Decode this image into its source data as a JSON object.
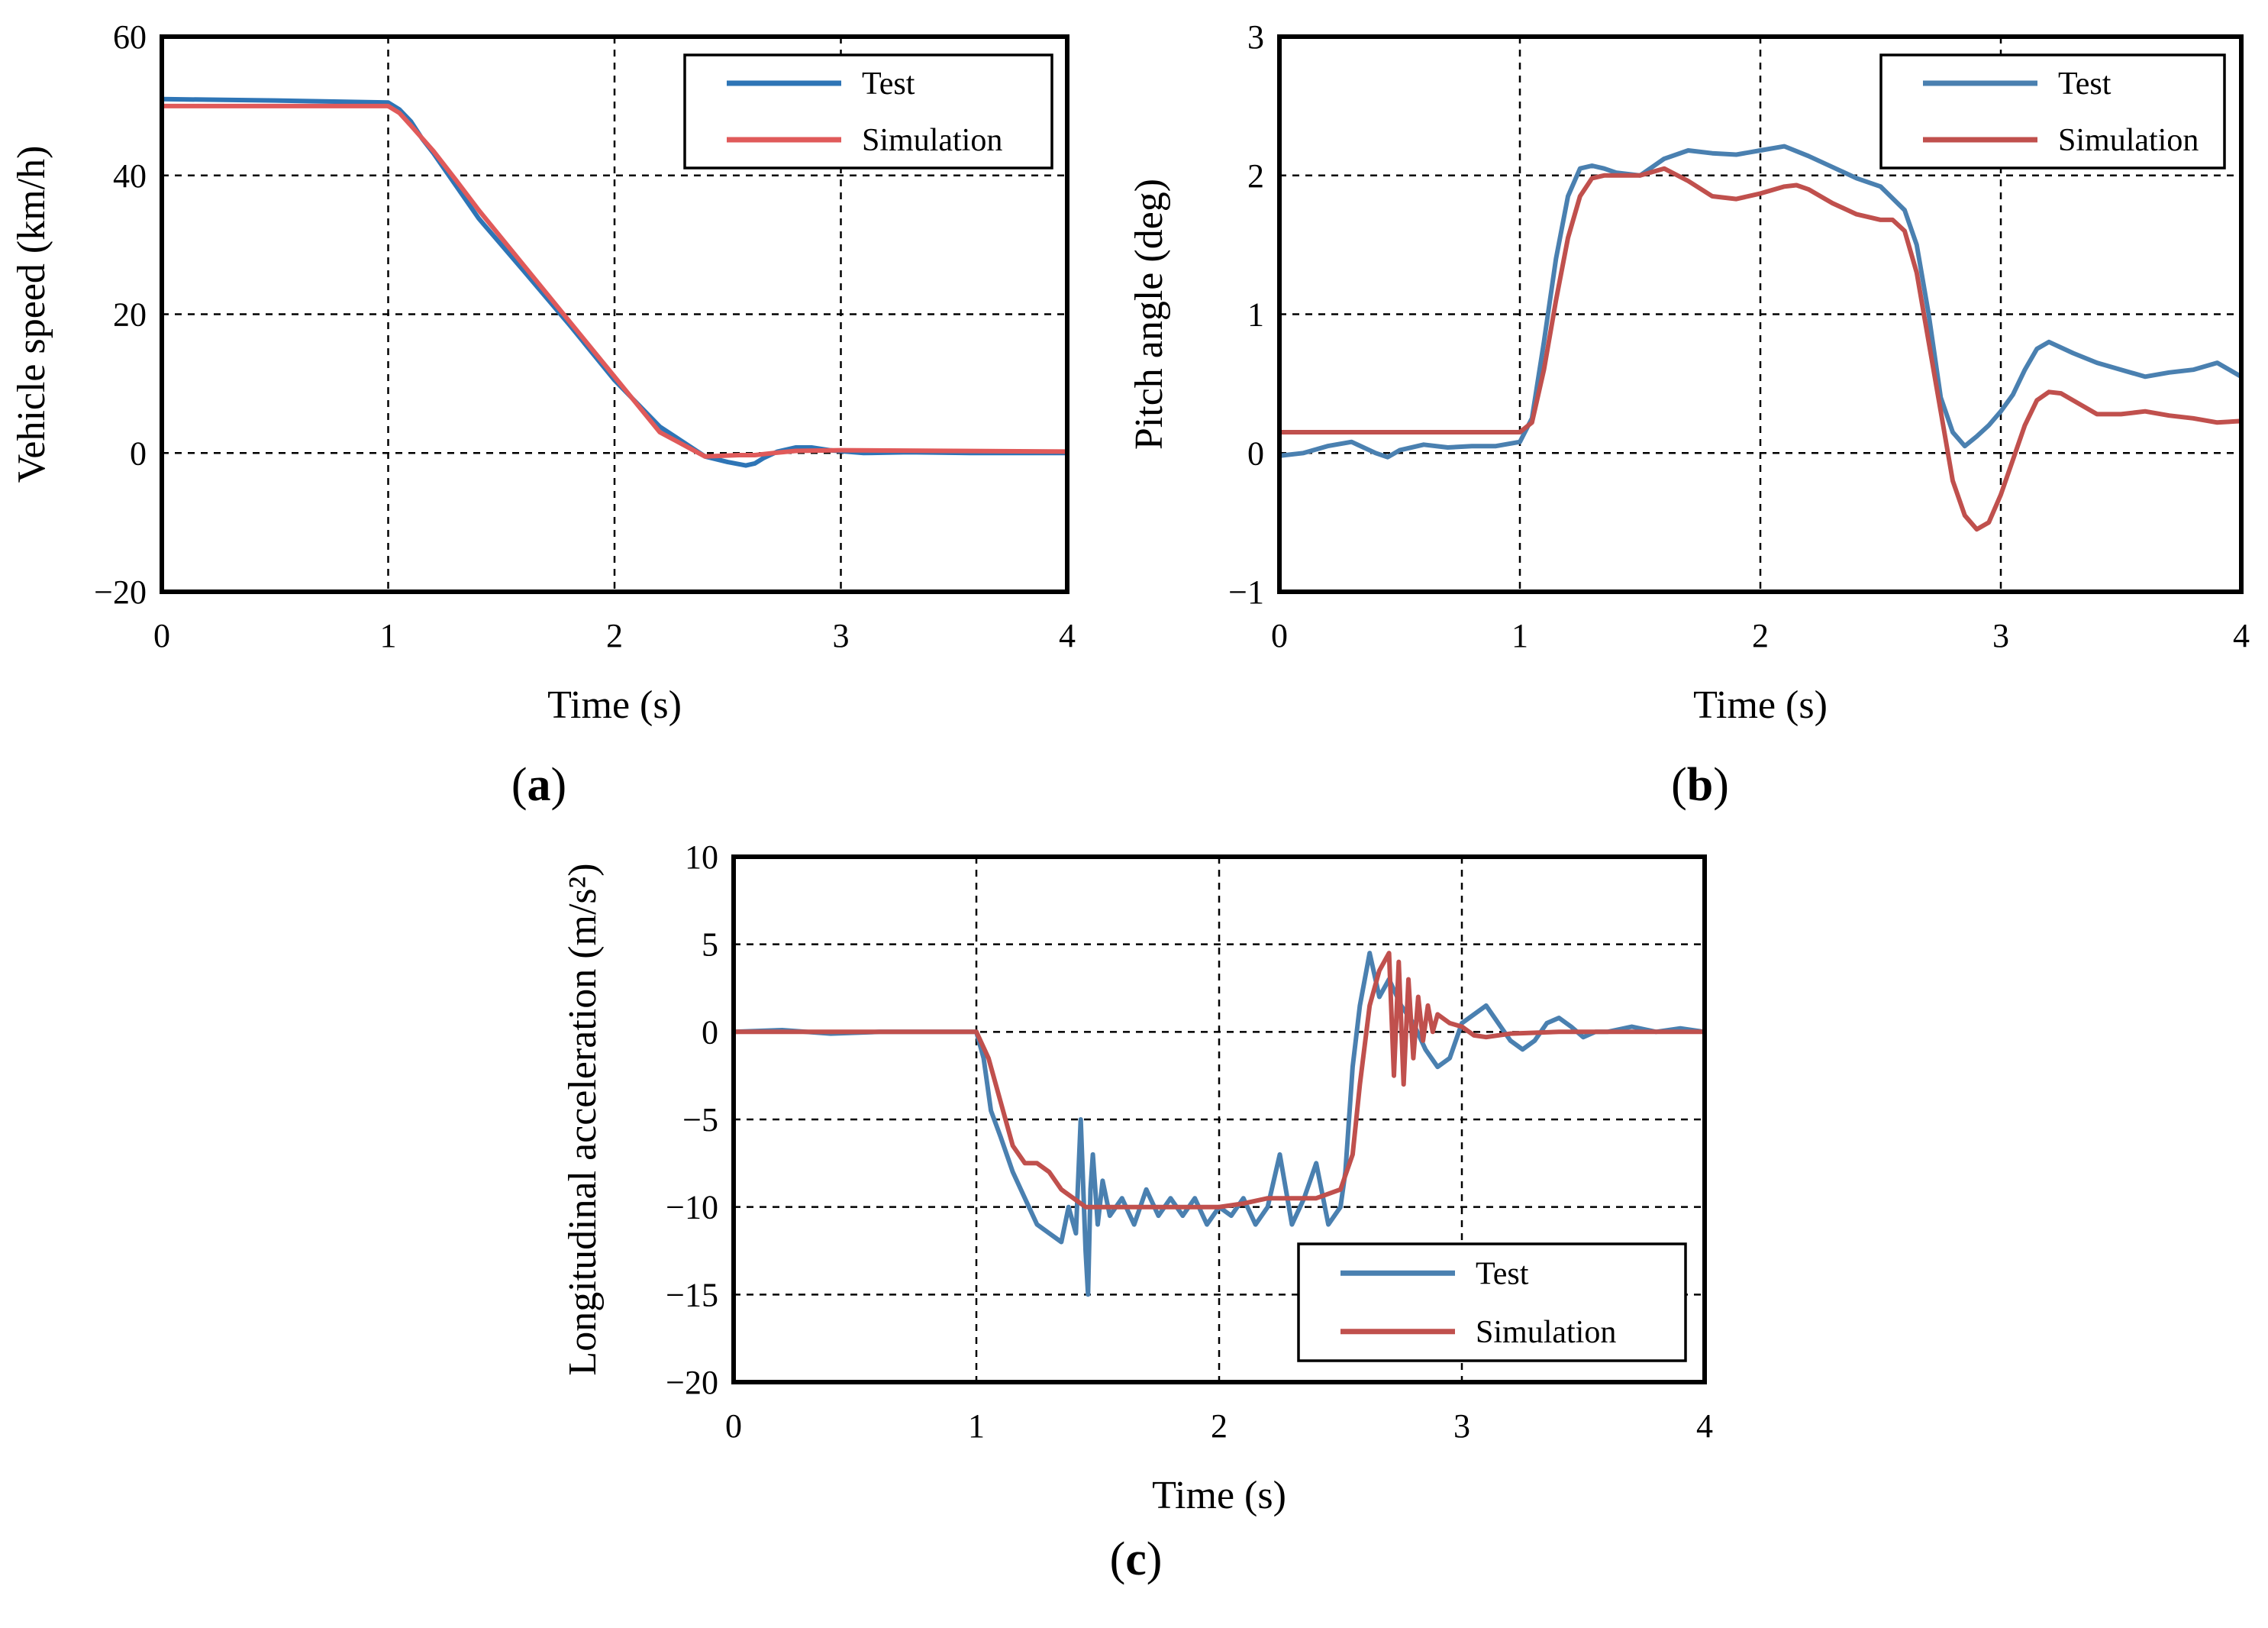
{
  "chart_data": [
    {
      "type": "line",
      "panel_label": "a",
      "xlabel": "Time (s)",
      "ylabel": "Vehicle speed (km/h)",
      "xlim": [
        0,
        4
      ],
      "ylim": [
        -20,
        60
      ],
      "xticks": [
        0,
        1,
        2,
        3,
        4
      ],
      "yticks": [
        -20,
        0,
        20,
        40,
        60
      ],
      "xtick_labels": [
        "0",
        "1",
        "2",
        "3",
        "4"
      ],
      "ytick_labels": [
        "−20",
        "0",
        "20",
        "40",
        "60"
      ],
      "grid": true,
      "legend_position": "top-right",
      "series": [
        {
          "name": "Test",
          "color": "#2E75B6",
          "x": [
            0,
            0.5,
            1.0,
            1.05,
            1.1,
            1.15,
            1.2,
            1.3,
            1.4,
            1.6,
            1.8,
            2.0,
            2.2,
            2.4,
            2.5,
            2.58,
            2.62,
            2.66,
            2.72,
            2.8,
            2.87,
            2.95,
            3.1,
            3.3,
            3.6,
            4.0
          ],
          "y": [
            51,
            50.8,
            50.5,
            49.5,
            47.8,
            45.3,
            43.2,
            38.5,
            33.8,
            26.2,
            18.5,
            10.5,
            3.8,
            -0.5,
            -1.3,
            -1.8,
            -1.5,
            -0.7,
            0.2,
            0.8,
            0.8,
            0.4,
            0.0,
            0.1,
            0.0,
            0.0
          ]
        },
        {
          "name": "Simulation",
          "color": "#E05A5A",
          "x": [
            0,
            0.5,
            1.0,
            1.05,
            1.1,
            1.2,
            1.3,
            1.4,
            1.6,
            1.8,
            2.0,
            2.2,
            2.4,
            2.55,
            2.62,
            2.7,
            2.8,
            3.0,
            3.5,
            4.0
          ],
          "y": [
            50,
            50,
            50,
            49,
            47.2,
            43.5,
            39.3,
            35,
            27,
            19,
            11,
            3,
            -0.5,
            -0.3,
            -0.3,
            0.0,
            0.3,
            0.4,
            0.3,
            0.2
          ]
        }
      ]
    },
    {
      "type": "line",
      "panel_label": "b",
      "xlabel": "Time (s)",
      "ylabel": "Pitch angle (deg)",
      "xlim": [
        0,
        4
      ],
      "ylim": [
        -1,
        3
      ],
      "xticks": [
        0,
        1,
        2,
        3,
        4
      ],
      "yticks": [
        -1,
        0,
        1,
        2,
        3
      ],
      "xtick_labels": [
        "0",
        "1",
        "2",
        "3",
        "4"
      ],
      "ytick_labels": [
        "−1",
        "0",
        "1",
        "2",
        "3"
      ],
      "grid": true,
      "legend_position": "top-right",
      "series": [
        {
          "name": "Test",
          "color": "#4A80B0",
          "x": [
            0,
            0.1,
            0.2,
            0.3,
            0.4,
            0.45,
            0.5,
            0.6,
            0.7,
            0.8,
            0.9,
            1.0,
            1.05,
            1.1,
            1.15,
            1.2,
            1.25,
            1.3,
            1.35,
            1.4,
            1.5,
            1.6,
            1.7,
            1.8,
            1.9,
            2.0,
            2.1,
            2.2,
            2.3,
            2.4,
            2.5,
            2.6,
            2.65,
            2.7,
            2.75,
            2.8,
            2.85,
            2.9,
            2.95,
            3.0,
            3.05,
            3.1,
            3.15,
            3.2,
            3.3,
            3.4,
            3.5,
            3.6,
            3.7,
            3.8,
            3.9,
            4.0
          ],
          "y": [
            -0.02,
            0.0,
            0.05,
            0.08,
            0.0,
            -0.03,
            0.02,
            0.06,
            0.04,
            0.05,
            0.05,
            0.08,
            0.25,
            0.8,
            1.4,
            1.85,
            2.05,
            2.07,
            2.05,
            2.02,
            2.0,
            2.12,
            2.18,
            2.16,
            2.15,
            2.18,
            2.21,
            2.14,
            2.06,
            1.98,
            1.92,
            1.75,
            1.5,
            1.0,
            0.4,
            0.15,
            0.05,
            0.12,
            0.2,
            0.3,
            0.42,
            0.6,
            0.75,
            0.8,
            0.72,
            0.65,
            0.6,
            0.55,
            0.58,
            0.6,
            0.65,
            0.55
          ]
        },
        {
          "name": "Simulation",
          "color": "#C0504D",
          "x": [
            0,
            0.5,
            1.0,
            1.05,
            1.1,
            1.15,
            1.2,
            1.25,
            1.3,
            1.35,
            1.4,
            1.5,
            1.6,
            1.7,
            1.8,
            1.9,
            2.0,
            2.1,
            2.15,
            2.2,
            2.3,
            2.4,
            2.5,
            2.55,
            2.6,
            2.65,
            2.7,
            2.75,
            2.8,
            2.85,
            2.9,
            2.95,
            3.0,
            3.05,
            3.1,
            3.15,
            3.2,
            3.25,
            3.3,
            3.4,
            3.5,
            3.6,
            3.7,
            3.8,
            3.9,
            4.0
          ],
          "y": [
            0.15,
            0.15,
            0.15,
            0.22,
            0.6,
            1.1,
            1.55,
            1.85,
            1.98,
            2.0,
            2.0,
            2.0,
            2.05,
            1.96,
            1.85,
            1.83,
            1.87,
            1.92,
            1.93,
            1.9,
            1.8,
            1.72,
            1.68,
            1.68,
            1.6,
            1.3,
            0.8,
            0.3,
            -0.2,
            -0.45,
            -0.55,
            -0.5,
            -0.3,
            -0.05,
            0.2,
            0.38,
            0.44,
            0.43,
            0.38,
            0.28,
            0.28,
            0.3,
            0.27,
            0.25,
            0.22,
            0.23
          ]
        }
      ]
    },
    {
      "type": "line",
      "panel_label": "c",
      "xlabel": "Time (s)",
      "ylabel": "Longitudinal acceleration (m/s²)",
      "xlim": [
        0,
        4
      ],
      "ylim": [
        -20,
        10
      ],
      "xticks": [
        0,
        1,
        2,
        3,
        4
      ],
      "yticks": [
        -20,
        -15,
        -10,
        -5,
        0,
        5,
        10
      ],
      "xtick_labels": [
        "0",
        "1",
        "2",
        "3",
        "4"
      ],
      "ytick_labels": [
        "−20",
        "−15",
        "−10",
        "−5",
        "0",
        "5",
        "10"
      ],
      "grid": true,
      "legend_position": "bottom-right",
      "series": [
        {
          "name": "Test",
          "color": "#4A80B0",
          "x": [
            0,
            0.2,
            0.4,
            0.6,
            0.8,
            0.95,
            1.0,
            1.03,
            1.06,
            1.1,
            1.15,
            1.2,
            1.25,
            1.3,
            1.35,
            1.38,
            1.41,
            1.43,
            1.45,
            1.46,
            1.47,
            1.48,
            1.5,
            1.52,
            1.55,
            1.6,
            1.65,
            1.7,
            1.75,
            1.8,
            1.85,
            1.9,
            1.95,
            2.0,
            2.05,
            2.1,
            2.15,
            2.2,
            2.25,
            2.3,
            2.35,
            2.4,
            2.45,
            2.5,
            2.52,
            2.55,
            2.58,
            2.62,
            2.66,
            2.7,
            2.75,
            2.8,
            2.85,
            2.9,
            2.95,
            3.0,
            3.05,
            3.1,
            3.15,
            3.2,
            3.25,
            3.3,
            3.35,
            3.4,
            3.45,
            3.5,
            3.55,
            3.6,
            3.7,
            3.8,
            3.9,
            4.0
          ],
          "y": [
            0,
            0.1,
            -0.1,
            0.0,
            0.0,
            0.0,
            0.0,
            -1.5,
            -4.5,
            -6.0,
            -8.0,
            -9.5,
            -11.0,
            -11.5,
            -12.0,
            -10.0,
            -11.5,
            -5.0,
            -12.5,
            -15.0,
            -9.0,
            -7.0,
            -11.0,
            -8.5,
            -10.5,
            -9.5,
            -11.0,
            -9.0,
            -10.5,
            -9.5,
            -10.5,
            -9.5,
            -11.0,
            -10.0,
            -10.5,
            -9.5,
            -11.0,
            -10.0,
            -7.0,
            -11.0,
            -9.5,
            -7.5,
            -11.0,
            -10.0,
            -8.0,
            -2.0,
            1.5,
            4.5,
            2.0,
            3.0,
            1.5,
            0.5,
            -1.0,
            -2.0,
            -1.5,
            0.5,
            1.0,
            1.5,
            0.5,
            -0.5,
            -1.0,
            -0.5,
            0.5,
            0.8,
            0.3,
            -0.3,
            0.0,
            0.0,
            0.3,
            0.0,
            0.2,
            0.0
          ]
        },
        {
          "name": "Simulation",
          "color": "#C0504D",
          "x": [
            0,
            0.5,
            1.0,
            1.05,
            1.1,
            1.15,
            1.2,
            1.25,
            1.3,
            1.35,
            1.4,
            1.45,
            1.5,
            1.6,
            1.7,
            1.8,
            1.9,
            2.0,
            2.1,
            2.2,
            2.3,
            2.4,
            2.5,
            2.55,
            2.58,
            2.62,
            2.66,
            2.7,
            2.72,
            2.74,
            2.76,
            2.78,
            2.8,
            2.82,
            2.84,
            2.86,
            2.88,
            2.9,
            2.95,
            3.0,
            3.05,
            3.1,
            3.2,
            3.4,
            3.6,
            3.8,
            4.0
          ],
          "y": [
            0,
            0,
            0,
            -1.5,
            -4.0,
            -6.5,
            -7.5,
            -7.5,
            -8.0,
            -9.0,
            -9.5,
            -10.0,
            -10.0,
            -10.0,
            -10.0,
            -10.0,
            -10.0,
            -10.0,
            -9.8,
            -9.5,
            -9.5,
            -9.5,
            -9.0,
            -7.0,
            -3.0,
            1.5,
            3.5,
            4.5,
            -2.5,
            4.0,
            -3.0,
            3.0,
            -1.5,
            2.0,
            -0.5,
            1.5,
            0.0,
            1.0,
            0.5,
            0.3,
            -0.2,
            -0.3,
            -0.1,
            0.0,
            0.0,
            0.0,
            0.0
          ]
        }
      ]
    }
  ]
}
